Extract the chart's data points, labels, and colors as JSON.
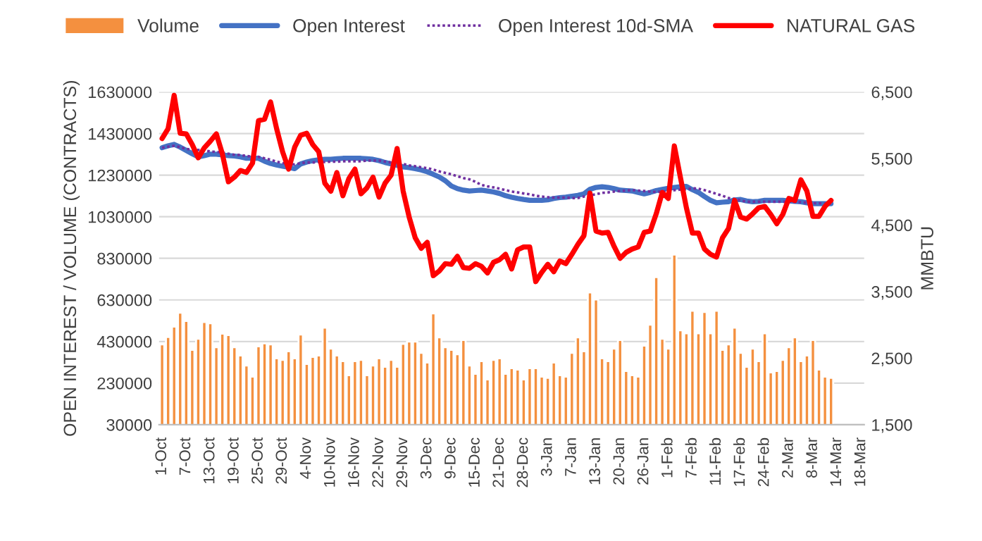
{
  "chart_data": {
    "type": "bar",
    "categories": [
      "1-Oct",
      null,
      null,
      null,
      "7-Oct",
      null,
      null,
      null,
      "13-Oct",
      null,
      null,
      null,
      "19-Oct",
      null,
      null,
      null,
      "25-Oct",
      null,
      null,
      null,
      "29-Oct",
      null,
      null,
      null,
      "4-Nov",
      null,
      null,
      null,
      "10-Nov",
      null,
      null,
      null,
      "16-Nov",
      null,
      null,
      null,
      "22-Nov",
      null,
      null,
      null,
      "29-Nov",
      null,
      null,
      null,
      "3-Dec",
      null,
      null,
      null,
      "9-Dec",
      null,
      null,
      null,
      "15-Dec",
      null,
      null,
      null,
      "21-Dec",
      null,
      null,
      null,
      "28-Dec",
      null,
      null,
      null,
      "3-Jan",
      null,
      null,
      null,
      "7-Jan",
      null,
      null,
      null,
      "13-Jan",
      null,
      null,
      null,
      "20-Jan",
      null,
      null,
      null,
      "26-Jan",
      null,
      null,
      null,
      "1-Feb",
      null,
      null,
      null,
      "7-Feb",
      null,
      null,
      null,
      "11-Feb",
      null,
      null,
      null,
      "17-Feb",
      null,
      null,
      null,
      "24-Feb",
      null,
      null,
      null,
      "2-Mar",
      null,
      null,
      null,
      "8-Mar",
      null,
      null,
      null,
      "14-Mar",
      null,
      null,
      null,
      "18-Mar"
    ],
    "series": [
      {
        "name": "Volume",
        "color": "#f4903f",
        "values": [
          416000,
          452000,
          502000,
          569000,
          529000,
          390000,
          443000,
          524000,
          518000,
          403000,
          468000,
          461000,
          403000,
          363000,
          315000,
          261000,
          407000,
          421000,
          416000,
          349000,
          342000,
          383000,
          349000,
          464000,
          322000,
          356000,
          363000,
          497000,
          396000,
          363000,
          336000,
          268000,
          336000,
          342000,
          268000,
          315000,
          349000,
          309000,
          342000,
          309000,
          419000,
          430000,
          430000,
          376000,
          329000,
          565000,
          450000,
          403000,
          390000,
          369000,
          437000,
          315000,
          275000,
          336000,
          248000,
          342000,
          349000,
          275000,
          302000,
          295000,
          248000,
          302000,
          302000,
          261000,
          255000,
          329000,
          268000,
          261000,
          376000,
          450000,
          383000,
          666000,
          632000,
          349000,
          336000,
          396000,
          437000,
          288000,
          268000,
          261000,
          410000,
          511000,
          740000,
          443000,
          396000,
          848000,
          484000,
          470000,
          578000,
          470000,
          572000,
          470000,
          578000,
          390000,
          416000,
          497000,
          376000,
          309000,
          396000,
          336000,
          470000,
          282000,
          288000,
          342000,
          403000,
          450000,
          336000,
          363000,
          437000,
          295000,
          261000,
          255000,
          null,
          null,
          null,
          null,
          null
        ]
      },
      {
        "name": "Open Interest",
        "type": "line",
        "color": "#4472c4",
        "line_style": "solid",
        "values": [
          1362000,
          1371000,
          1378000,
          1365000,
          1349000,
          1333000,
          1318000,
          1324000,
          1331000,
          1331000,
          1327000,
          1324000,
          1322000,
          1318000,
          1311000,
          1311000,
          1311000,
          1297000,
          1286000,
          1279000,
          1273000,
          1268000,
          1261000,
          1284000,
          1293000,
          1300000,
          1304000,
          1306000,
          1306000,
          1309000,
          1311000,
          1311000,
          1311000,
          1311000,
          1309000,
          1306000,
          1300000,
          1291000,
          1284000,
          1277000,
          1270000,
          1266000,
          1261000,
          1255000,
          1246000,
          1234000,
          1221000,
          1203000,
          1178000,
          1165000,
          1158000,
          1154000,
          1156000,
          1158000,
          1154000,
          1149000,
          1142000,
          1131000,
          1124000,
          1118000,
          1113000,
          1109000,
          1109000,
          1109000,
          1111000,
          1118000,
          1122000,
          1124000,
          1129000,
          1133000,
          1140000,
          1162000,
          1171000,
          1174000,
          1171000,
          1165000,
          1158000,
          1156000,
          1154000,
          1147000,
          1140000,
          1147000,
          1156000,
          1162000,
          1167000,
          1171000,
          1174000,
          1176000,
          1160000,
          1147000,
          1127000,
          1109000,
          1097000,
          1100000,
          1102000,
          1111000,
          1113000,
          1106000,
          1102000,
          1104000,
          1109000,
          1109000,
          1109000,
          1109000,
          1106000,
          1104000,
          1102000,
          1097000,
          1093000,
          1093000,
          1093000,
          1093000,
          null,
          null,
          null,
          null,
          null
        ]
      },
      {
        "name": "Open Interest 10d-SMA",
        "type": "line",
        "color": "#7030a0",
        "line_style": "dotted",
        "values": [
          1362000,
          1367000,
          1371000,
          1365000,
          1356000,
          1353000,
          1351000,
          1349000,
          1344000,
          1342000,
          1338000,
          1333000,
          1328000,
          1327000,
          1322000,
          1319000,
          1318000,
          1311000,
          1304000,
          1295000,
          1288000,
          1286000,
          1281000,
          1288000,
          1291000,
          1291000,
          1293000,
          1293000,
          1295000,
          1295000,
          1297000,
          1297000,
          1297000,
          1297000,
          1300000,
          1300000,
          1300000,
          1295000,
          1291000,
          1288000,
          1284000,
          1277000,
          1273000,
          1268000,
          1264000,
          1257000,
          1248000,
          1241000,
          1234000,
          1225000,
          1216000,
          1210000,
          1198000,
          1183000,
          1176000,
          1171000,
          1165000,
          1158000,
          1151000,
          1147000,
          1142000,
          1138000,
          1131000,
          1127000,
          1124000,
          1122000,
          1122000,
          1122000,
          1120000,
          1120000,
          1127000,
          1133000,
          1138000,
          1145000,
          1147000,
          1151000,
          1154000,
          1156000,
          1158000,
          1156000,
          1154000,
          1151000,
          1149000,
          1151000,
          1154000,
          1158000,
          1160000,
          1162000,
          1167000,
          1165000,
          1158000,
          1149000,
          1140000,
          1131000,
          1120000,
          1115000,
          1109000,
          1102000,
          1102000,
          1102000,
          1102000,
          1102000,
          1102000,
          1102000,
          1102000,
          1100000,
          1100000,
          1097000,
          1095000,
          1095000,
          1093000,
          1093000,
          null,
          null,
          null,
          null,
          null
        ]
      },
      {
        "name": "NATURAL GAS",
        "type": "line",
        "axis": "y2",
        "color": "#ff0000",
        "line_style": "solid",
        "values": [
          5800,
          5950,
          6450,
          5880,
          5870,
          5710,
          5510,
          5660,
          5760,
          5870,
          5570,
          5150,
          5220,
          5320,
          5290,
          5430,
          6070,
          6090,
          6350,
          5950,
          5600,
          5340,
          5670,
          5850,
          5880,
          5710,
          5600,
          5130,
          5010,
          5290,
          4940,
          5200,
          5340,
          4970,
          5060,
          5220,
          4920,
          5130,
          5250,
          5650,
          5010,
          4620,
          4310,
          4150,
          4240,
          3740,
          3810,
          3920,
          3910,
          4030,
          3860,
          3850,
          3920,
          3880,
          3780,
          3940,
          3980,
          4060,
          3840,
          4130,
          4170,
          4170,
          3650,
          3790,
          3910,
          3800,
          3960,
          3920,
          4060,
          4210,
          4340,
          4980,
          4410,
          4380,
          4390,
          4180,
          4000,
          4090,
          4140,
          4170,
          4390,
          4410,
          4670,
          4990,
          4900,
          5690,
          5220,
          4760,
          4380,
          4380,
          4140,
          4060,
          4020,
          4310,
          4450,
          4870,
          4620,
          4590,
          4670,
          4760,
          4780,
          4660,
          4520,
          4660,
          4900,
          4870,
          5180,
          5010,
          4630,
          4630,
          4780,
          4870,
          null,
          null,
          null,
          null,
          null
        ]
      }
    ],
    "ylabel": "OPEN INTEREST / VOLUME (CONTRACTS)",
    "y2label": "MMBTU",
    "ylim": [
      30000,
      1630000
    ],
    "yticks": [
      30000,
      230000,
      430000,
      630000,
      830000,
      1030000,
      1230000,
      1430000,
      1630000
    ],
    "y2lim": [
      1500,
      6500
    ],
    "y2ticks": [
      {
        "value": 1500,
        "label": "1,500"
      },
      {
        "value": 2500,
        "label": "2,500"
      },
      {
        "value": 3500,
        "label": "3,500"
      },
      {
        "value": 4500,
        "label": "4,500"
      },
      {
        "value": 5500,
        "label": "5,500"
      },
      {
        "value": 6500,
        "label": "6,500"
      }
    ],
    "grid": "y",
    "legend": "top"
  }
}
